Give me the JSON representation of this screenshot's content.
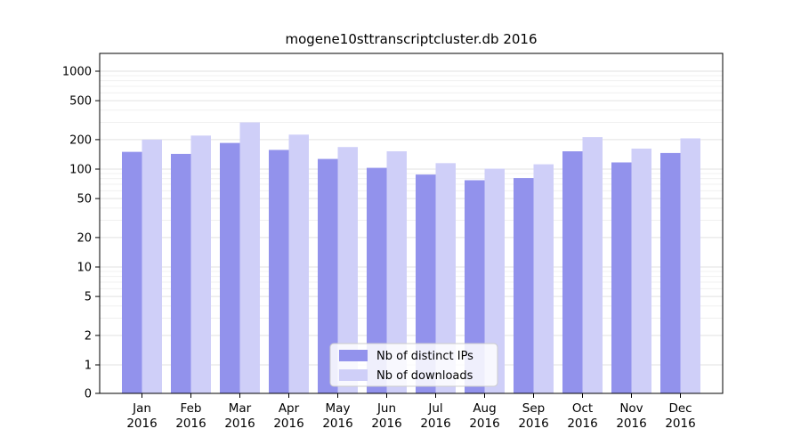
{
  "title": "mogene10sttranscriptcluster.db 2016",
  "chart_data": {
    "type": "bar",
    "scale": "symlog",
    "title": "mogene10sttranscriptcluster.db 2016",
    "xlabel": "",
    "ylabel": "",
    "year": "2016",
    "categories": [
      "Jan",
      "Feb",
      "Mar",
      "Apr",
      "May",
      "Jun",
      "Jul",
      "Aug",
      "Sep",
      "Oct",
      "Nov",
      "Dec"
    ],
    "series": [
      {
        "name": "Nb of distinct IPs",
        "color": "#9292ec",
        "values": [
          150,
          143,
          185,
          157,
          127,
          103,
          88,
          77,
          81,
          152,
          117,
          146
        ]
      },
      {
        "name": "Nb of downloads",
        "color": "#cfcff8",
        "values": [
          200,
          220,
          300,
          225,
          168,
          152,
          115,
          101,
          112,
          212,
          162,
          206
        ]
      }
    ],
    "yticks": [
      0,
      1,
      2,
      5,
      10,
      20,
      50,
      100,
      200,
      500,
      1000
    ],
    "ylim": [
      0,
      1500
    ],
    "grid": true,
    "legend_position": "bottom-center-inside"
  },
  "colors": {
    "background": "#ffffff",
    "axis": "#000000",
    "grid_major": "#e2e2e2",
    "grid_minor": "#f0f0f0",
    "legend_border": "#cccccc",
    "text": "#000000"
  }
}
